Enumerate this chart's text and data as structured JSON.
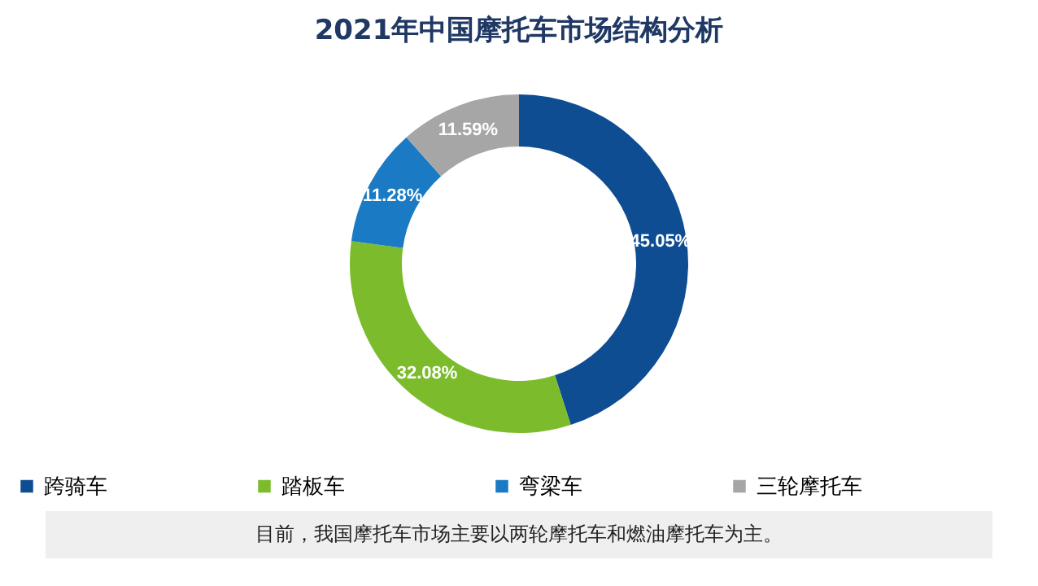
{
  "chart_data": {
    "type": "donut",
    "title": "2021年中国摩托车市场结构分析",
    "categories": [
      "跨骑车",
      "踏板车",
      "弯梁车",
      "三轮摩托车"
    ],
    "values": [
      45.05,
      32.08,
      11.28,
      11.59
    ],
    "value_labels": [
      "45.05%",
      "32.08%",
      "11.28%",
      "11.59%"
    ],
    "colors": [
      "#0e4d92",
      "#7cbc2c",
      "#1a7ac4",
      "#a6a6a6"
    ],
    "legend": "bottom",
    "annotations": [
      "目前，我国摩托车市场主要以两轮摩托车和燃油摩托车为主。"
    ]
  }
}
